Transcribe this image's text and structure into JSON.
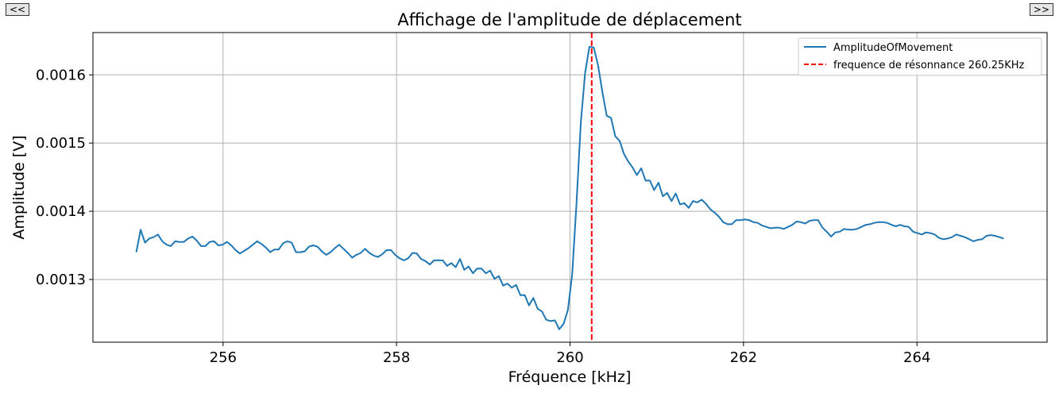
{
  "nav": {
    "prev_label": "<<",
    "next_label": ">>"
  },
  "chart_data": {
    "type": "line",
    "title": "Affichage de l'amplitude de déplacement",
    "xlabel": "Fréquence [kHz]",
    "ylabel": "Amplitude [V]",
    "xlim": [
      254.5,
      265.5
    ],
    "ylim": [
      0.001208,
      0.001662
    ],
    "x_ticks": [
      256,
      258,
      260,
      262,
      264
    ],
    "x_tick_labels": [
      "256",
      "258",
      "260",
      "262",
      "264"
    ],
    "y_ticks": [
      0.0013,
      0.0014,
      0.0015,
      0.0016
    ],
    "y_tick_labels": [
      "0.0013",
      "0.0014",
      "0.0015",
      "0.0016"
    ],
    "grid": true,
    "legend_position": "top-right",
    "colors": {
      "series": "#1f77b4",
      "marker_line": "#ff0000"
    },
    "series": [
      {
        "name": "AmplitudeOfMovement",
        "x_start": 255.0,
        "x_end": 265.0,
        "values": [
          0.00134,
          0.001373,
          0.001354,
          0.00136,
          0.001362,
          0.001366,
          0.001356,
          0.001351,
          0.001349,
          0.001356,
          0.001355,
          0.001355,
          0.00136,
          0.001363,
          0.001357,
          0.001349,
          0.001349,
          0.001355,
          0.001356,
          0.00135,
          0.001351,
          0.001355,
          0.00135,
          0.001343,
          0.001338,
          0.001342,
          0.001346,
          0.001351,
          0.001356,
          0.001352,
          0.001347,
          0.00134,
          0.001344,
          0.001344,
          0.001353,
          0.001356,
          0.001354,
          0.00134,
          0.00134,
          0.001341,
          0.001348,
          0.00135,
          0.001348,
          0.001341,
          0.001336,
          0.00134,
          0.001346,
          0.001351,
          0.001345,
          0.001339,
          0.001332,
          0.001336,
          0.001339,
          0.001345,
          0.001339,
          0.001335,
          0.001333,
          0.001337,
          0.001343,
          0.001343,
          0.001336,
          0.001331,
          0.001328,
          0.001331,
          0.001339,
          0.001338,
          0.00133,
          0.001327,
          0.001322,
          0.001328,
          0.001328,
          0.001328,
          0.00132,
          0.001324,
          0.001318,
          0.00133,
          0.001314,
          0.001319,
          0.001309,
          0.001316,
          0.001316,
          0.001309,
          0.001313,
          0.001301,
          0.001305,
          0.001291,
          0.001294,
          0.001288,
          0.001292,
          0.001277,
          0.001277,
          0.001262,
          0.001273,
          0.001257,
          0.001253,
          0.001241,
          0.001239,
          0.00124,
          0.001227,
          0.001235,
          0.001255,
          0.001307,
          0.00141,
          0.00153,
          0.001603,
          0.001641,
          0.00164,
          0.001614,
          0.001575,
          0.00154,
          0.001537,
          0.00151,
          0.001503,
          0.001484,
          0.001473,
          0.001464,
          0.001453,
          0.001463,
          0.001445,
          0.001445,
          0.001431,
          0.001442,
          0.001422,
          0.001427,
          0.001415,
          0.001426,
          0.00141,
          0.001412,
          0.001405,
          0.001415,
          0.001413,
          0.001417,
          0.001411,
          0.001403,
          0.001398,
          0.001392,
          0.001384,
          0.001381,
          0.001381,
          0.001387,
          0.001387,
          0.001388,
          0.001387,
          0.001384,
          0.001383,
          0.001379,
          0.001377,
          0.001375,
          0.001376,
          0.001376,
          0.001374,
          0.001377,
          0.00138,
          0.001385,
          0.001384,
          0.001382,
          0.001386,
          0.001387,
          0.001387,
          0.001376,
          0.00137,
          0.001363,
          0.001369,
          0.00137,
          0.001374,
          0.001373,
          0.001373,
          0.001374,
          0.001377,
          0.00138,
          0.001381,
          0.001383,
          0.001384,
          0.001384,
          0.001383,
          0.00138,
          0.001378,
          0.00138,
          0.001378,
          0.001377,
          0.00137,
          0.001368,
          0.001366,
          0.001369,
          0.001368,
          0.001366,
          0.001361,
          0.001359,
          0.00136,
          0.001362,
          0.001366,
          0.001364,
          0.001362,
          0.001359,
          0.001356,
          0.001358,
          0.001359,
          0.001364,
          0.001365,
          0.001364,
          0.001362,
          0.00136
        ]
      }
    ],
    "vlines": [
      {
        "name": "frequence de résonnance 260.25KHz",
        "x": 260.25,
        "style": "dashed"
      }
    ]
  }
}
